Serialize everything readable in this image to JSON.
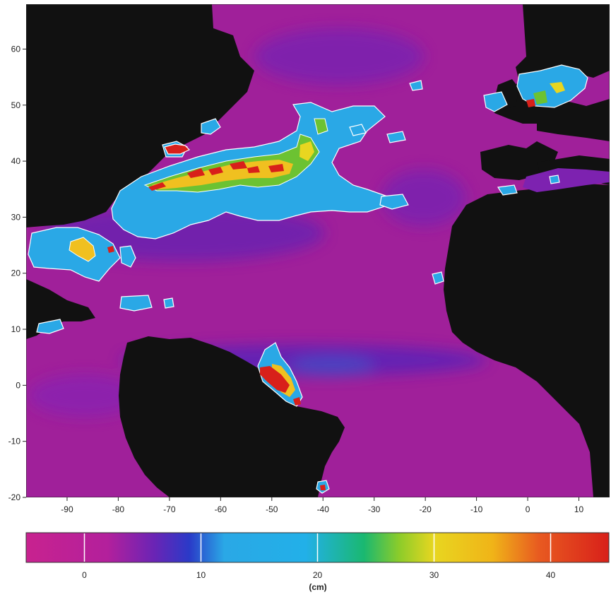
{
  "map": {
    "x_axis": {
      "range": [
        -98,
        16
      ],
      "ticks": [
        "-90",
        "-80",
        "-70",
        "-60",
        "-50",
        "-40",
        "-30",
        "-20",
        "-10",
        "0",
        "10"
      ],
      "tick_values": [
        -90,
        -80,
        -70,
        -60,
        -50,
        -40,
        -30,
        -20,
        -10,
        0,
        10
      ]
    },
    "y_axis": {
      "range": [
        -20,
        68
      ],
      "ticks": [
        "60",
        "50",
        "40",
        "30",
        "20",
        "10",
        "0",
        "-10",
        "-20"
      ],
      "tick_values": [
        60,
        50,
        40,
        30,
        20,
        10,
        0,
        -10,
        -20
      ]
    },
    "colors": {
      "land": "#111111",
      "ocean_base": "#a0209a",
      "low_variability": "#6a1fb0",
      "mid_variability": "#2aa8e6",
      "high_variability": "#f0c020",
      "peak_variability": "#d8201a"
    },
    "features": [
      {
        "name": "gulf-stream",
        "level": "high",
        "lon": -60,
        "lat": 39
      },
      {
        "name": "north-atlantic-current",
        "level": "mid",
        "lon": -40,
        "lat": 46
      },
      {
        "name": "caribbean-eddies",
        "level": "high",
        "lon": -86,
        "lat": 25
      },
      {
        "name": "amazon-outflow",
        "level": "peak",
        "lon": -48,
        "lat": 0
      },
      {
        "name": "north-sea",
        "level": "high",
        "lon": 2,
        "lat": 53
      },
      {
        "name": "newfoundland-eddy",
        "level": "peak",
        "lon": -68,
        "lat": 44
      }
    ]
  },
  "colorbar": {
    "unit_label": "(cm)",
    "range": [
      -5,
      45
    ],
    "ticks": [
      "0",
      "10",
      "20",
      "30",
      "40"
    ],
    "tick_values": [
      0,
      10,
      20,
      30,
      40
    ],
    "stops": [
      {
        "value": -5,
        "color": "#c8228f"
      },
      {
        "value": 2,
        "color": "#b3209c"
      },
      {
        "value": 6,
        "color": "#6a24b5"
      },
      {
        "value": 9,
        "color": "#2a3ac8"
      },
      {
        "value": 12,
        "color": "#2aa8e6"
      },
      {
        "value": 19,
        "color": "#22b0e8"
      },
      {
        "value": 24,
        "color": "#1ab870"
      },
      {
        "value": 27,
        "color": "#8ccc2a"
      },
      {
        "value": 30,
        "color": "#e8d620"
      },
      {
        "value": 35,
        "color": "#f0b418"
      },
      {
        "value": 39,
        "color": "#e85a20"
      },
      {
        "value": 45,
        "color": "#d8201a"
      }
    ]
  }
}
